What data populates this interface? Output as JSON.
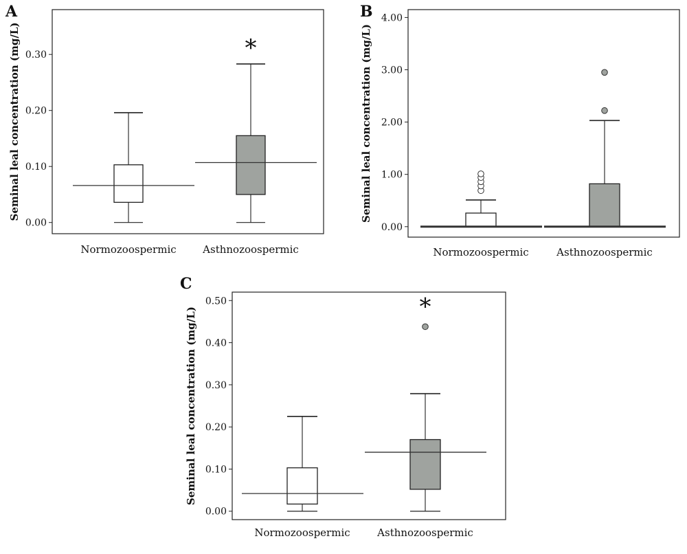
{
  "chart_data": [
    {
      "type": "box",
      "panel_label": "A",
      "ylabel": "Seminal leal concentration (mg/L)",
      "ylim": [
        -0.02,
        0.38
      ],
      "yticks": [
        0.0,
        0.1,
        0.2,
        0.3
      ],
      "ytick_labels": [
        "0.00",
        "0.10",
        "0.20",
        "0.30"
      ],
      "categories": [
        "Normozoospermic",
        "Asthnozoospermic"
      ],
      "boxes": [
        {
          "whisker_low": 0.0,
          "q1": 0.036,
          "median": 0.066,
          "q3": 0.103,
          "whisker_high": 0.196,
          "outliers": [],
          "fill": "#ffffff",
          "significant": false
        },
        {
          "whisker_low": 0.0,
          "q1": 0.05,
          "median": 0.107,
          "q3": 0.155,
          "whisker_high": 0.283,
          "outliers": [],
          "fill": "#9fa39f",
          "significant": true
        }
      ],
      "significance_mark": "*",
      "grid": false
    },
    {
      "type": "box",
      "panel_label": "B",
      "ylabel": "Seminal leal concentration (mg/L)",
      "ylim": [
        -0.2,
        4.15
      ],
      "yticks": [
        0,
        1,
        2,
        3,
        4
      ],
      "ytick_labels": [
        "0.00",
        "1.00",
        "2.00",
        "3.00",
        "4.00"
      ],
      "categories": [
        "Normozoospermic",
        "Asthnozoospermic"
      ],
      "boxes": [
        {
          "whisker_low": 0.0,
          "q1": 0.0,
          "median": 0.0,
          "q3": 0.26,
          "whisker_high": 0.51,
          "outliers": [
            0.69,
            0.78,
            0.86,
            0.94,
            1.01
          ],
          "fill": "#ffffff",
          "significant": false
        },
        {
          "whisker_low": 0.0,
          "q1": 0.0,
          "median": 0.0,
          "q3": 0.82,
          "whisker_high": 2.03,
          "outliers": [
            2.22,
            2.95
          ],
          "fill": "#9fa39f",
          "significant": false
        }
      ],
      "significance_mark": "",
      "grid": false
    },
    {
      "type": "box",
      "panel_label": "C",
      "ylabel": "Seminal leal concentration (mg/L)",
      "ylim": [
        -0.02,
        0.52
      ],
      "yticks": [
        0.0,
        0.1,
        0.2,
        0.3,
        0.4,
        0.5
      ],
      "ytick_labels": [
        "0.00",
        "0.10",
        "0.20",
        "0.30",
        "0.40",
        "0.50"
      ],
      "categories": [
        "Normozoospermic",
        "Asthnozoospermic"
      ],
      "boxes": [
        {
          "whisker_low": 0.0,
          "q1": 0.017,
          "median": 0.042,
          "q3": 0.103,
          "whisker_high": 0.225,
          "outliers": [],
          "fill": "#ffffff",
          "significant": false
        },
        {
          "whisker_low": 0.0,
          "q1": 0.052,
          "median": 0.14,
          "q3": 0.17,
          "whisker_high": 0.279,
          "outliers": [
            0.438
          ],
          "fill": "#9fa39f",
          "significant": true
        }
      ],
      "significance_mark": "*",
      "grid": false
    }
  ]
}
